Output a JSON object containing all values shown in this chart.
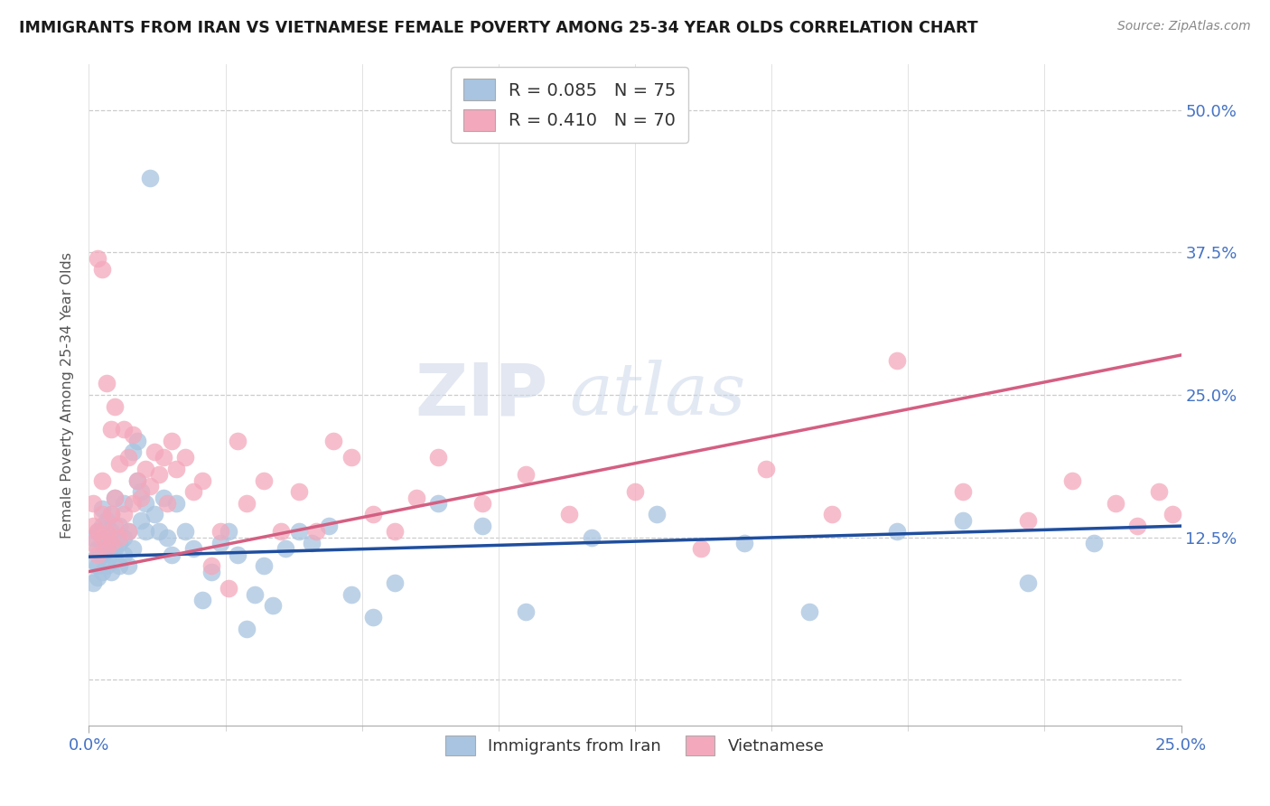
{
  "title": "IMMIGRANTS FROM IRAN VS VIETNAMESE FEMALE POVERTY AMONG 25-34 YEAR OLDS CORRELATION CHART",
  "source": "Source: ZipAtlas.com",
  "ylabel": "Female Poverty Among 25-34 Year Olds",
  "ytick_labels": [
    "",
    "12.5%",
    "25.0%",
    "37.5%",
    "50.0%"
  ],
  "ytick_positions": [
    0.0,
    0.125,
    0.25,
    0.375,
    0.5
  ],
  "xlim": [
    0.0,
    0.25
  ],
  "ylim": [
    -0.04,
    0.54
  ],
  "iran_color": "#a8c4e0",
  "iran_line_color": "#1f4e9e",
  "viet_color": "#f4a8bc",
  "viet_line_color": "#d45f82",
  "R_iran": 0.085,
  "N_iran": 75,
  "R_viet": 0.41,
  "N_viet": 70,
  "legend_label_iran": "Immigrants from Iran",
  "legend_label_viet": "Vietnamese",
  "watermark_zip": "ZIP",
  "watermark_atlas": "atlas",
  "iran_scatter_x": [
    0.001,
    0.001,
    0.001,
    0.002,
    0.002,
    0.002,
    0.002,
    0.003,
    0.003,
    0.003,
    0.003,
    0.003,
    0.004,
    0.004,
    0.004,
    0.004,
    0.005,
    0.005,
    0.005,
    0.005,
    0.006,
    0.006,
    0.006,
    0.007,
    0.007,
    0.007,
    0.008,
    0.008,
    0.008,
    0.009,
    0.009,
    0.01,
    0.01,
    0.011,
    0.011,
    0.012,
    0.012,
    0.013,
    0.013,
    0.014,
    0.015,
    0.016,
    0.017,
    0.018,
    0.019,
    0.02,
    0.022,
    0.024,
    0.026,
    0.028,
    0.03,
    0.032,
    0.034,
    0.036,
    0.038,
    0.04,
    0.042,
    0.045,
    0.048,
    0.051,
    0.055,
    0.06,
    0.065,
    0.07,
    0.08,
    0.09,
    0.1,
    0.115,
    0.13,
    0.15,
    0.165,
    0.185,
    0.2,
    0.215,
    0.23
  ],
  "iran_scatter_y": [
    0.085,
    0.105,
    0.125,
    0.09,
    0.1,
    0.115,
    0.13,
    0.095,
    0.11,
    0.12,
    0.135,
    0.15,
    0.1,
    0.115,
    0.125,
    0.14,
    0.095,
    0.11,
    0.13,
    0.145,
    0.105,
    0.115,
    0.16,
    0.1,
    0.12,
    0.135,
    0.11,
    0.125,
    0.155,
    0.1,
    0.13,
    0.115,
    0.2,
    0.21,
    0.175,
    0.14,
    0.165,
    0.13,
    0.155,
    0.44,
    0.145,
    0.13,
    0.16,
    0.125,
    0.11,
    0.155,
    0.13,
    0.115,
    0.07,
    0.095,
    0.12,
    0.13,
    0.11,
    0.045,
    0.075,
    0.1,
    0.065,
    0.115,
    0.13,
    0.12,
    0.135,
    0.075,
    0.055,
    0.085,
    0.155,
    0.135,
    0.06,
    0.125,
    0.145,
    0.12,
    0.06,
    0.13,
    0.14,
    0.085,
    0.12
  ],
  "viet_scatter_x": [
    0.001,
    0.001,
    0.001,
    0.002,
    0.002,
    0.002,
    0.003,
    0.003,
    0.003,
    0.003,
    0.004,
    0.004,
    0.004,
    0.005,
    0.005,
    0.005,
    0.006,
    0.006,
    0.006,
    0.007,
    0.007,
    0.008,
    0.008,
    0.009,
    0.009,
    0.01,
    0.01,
    0.011,
    0.012,
    0.013,
    0.014,
    0.015,
    0.016,
    0.017,
    0.018,
    0.019,
    0.02,
    0.022,
    0.024,
    0.026,
    0.028,
    0.03,
    0.032,
    0.034,
    0.036,
    0.04,
    0.044,
    0.048,
    0.052,
    0.056,
    0.06,
    0.065,
    0.07,
    0.075,
    0.08,
    0.09,
    0.1,
    0.11,
    0.125,
    0.14,
    0.155,
    0.17,
    0.185,
    0.2,
    0.215,
    0.225,
    0.235,
    0.24,
    0.245,
    0.248
  ],
  "viet_scatter_y": [
    0.12,
    0.135,
    0.155,
    0.11,
    0.13,
    0.37,
    0.125,
    0.145,
    0.36,
    0.175,
    0.115,
    0.13,
    0.26,
    0.12,
    0.145,
    0.22,
    0.135,
    0.16,
    0.24,
    0.125,
    0.19,
    0.145,
    0.22,
    0.13,
    0.195,
    0.155,
    0.215,
    0.175,
    0.16,
    0.185,
    0.17,
    0.2,
    0.18,
    0.195,
    0.155,
    0.21,
    0.185,
    0.195,
    0.165,
    0.175,
    0.1,
    0.13,
    0.08,
    0.21,
    0.155,
    0.175,
    0.13,
    0.165,
    0.13,
    0.21,
    0.195,
    0.145,
    0.13,
    0.16,
    0.195,
    0.155,
    0.18,
    0.145,
    0.165,
    0.115,
    0.185,
    0.145,
    0.28,
    0.165,
    0.14,
    0.175,
    0.155,
    0.135,
    0.165,
    0.145
  ]
}
